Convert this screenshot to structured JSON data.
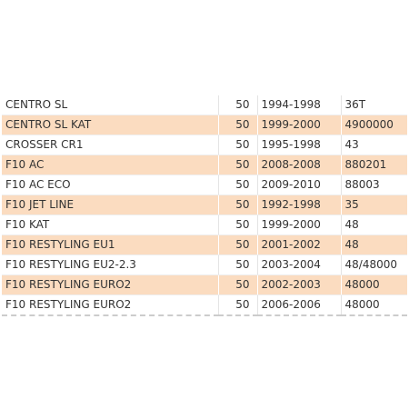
{
  "table": {
    "rows": [
      [
        "CENTRO SL",
        "50",
        "1994-1998",
        "36T"
      ],
      [
        "CENTRO SL KAT",
        "50",
        "1999-2000",
        "4900000"
      ],
      [
        "CROSSER CR1",
        "50",
        "1995-1998",
        "43"
      ],
      [
        "F10 AC",
        "50",
        "2008-2008",
        "880201"
      ],
      [
        "F10 AC ECO",
        "50",
        "2009-2010",
        "88003"
      ],
      [
        "F10 JET LINE",
        "50",
        "1992-1998",
        "35"
      ],
      [
        "F10 KAT",
        "50",
        "1999-2000",
        "48"
      ],
      [
        "F10 RESTYLING EU1",
        "50",
        "2001-2002",
        "48"
      ],
      [
        "F10 RESTYLING EU2-2.3",
        "50",
        "2003-2004",
        "48/48000"
      ],
      [
        "F10 RESTYLING EURO2",
        "50",
        "2002-2003",
        "48000"
      ],
      [
        "F10 RESTYLING EURO2",
        "50",
        "2006-2006",
        "48000"
      ]
    ]
  }
}
